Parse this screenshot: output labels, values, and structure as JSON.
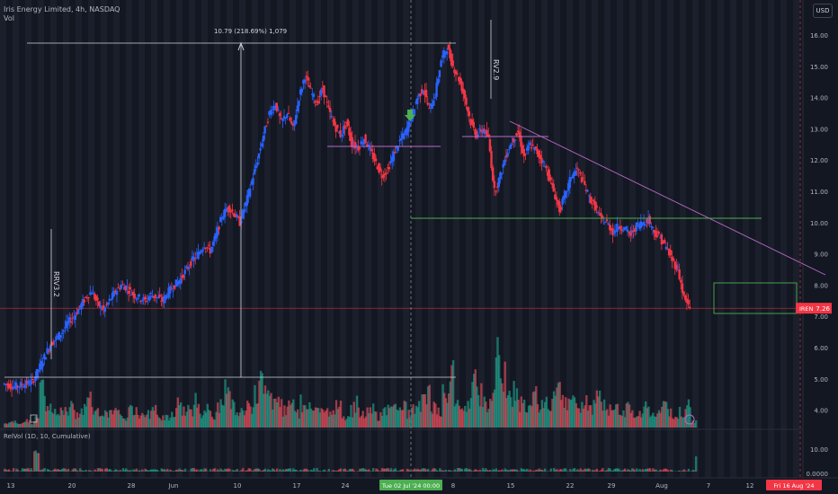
{
  "header": {
    "symbol_line": "Iris Energy Limited, 4h, NASDAQ",
    "vol_label": "Vol"
  },
  "currency_button": "USD",
  "relvol_label": "RelVol (1D, 10, Cumulative)",
  "chart_data": {
    "type": "candlestick",
    "price_axis": {
      "ticks": [
        "16.00",
        "15.00",
        "14.00",
        "13.00",
        "12.00",
        "11.00",
        "10.00",
        "9.00",
        "8.00",
        "7.00",
        "6.00",
        "5.00",
        "4.00"
      ],
      "range": [
        3.5,
        16.5
      ]
    },
    "relvol_axis": {
      "ticks": [
        "10.00",
        "0.0000"
      ]
    },
    "time_axis": {
      "labels": [
        "13",
        "20",
        "28",
        "Jun",
        "10",
        "17",
        "24",
        "Tue 02 Jul '24   00:00",
        "8",
        "15",
        "22",
        "29",
        "Aug",
        "7",
        "12",
        "Fri 16 Aug '24"
      ]
    },
    "last_price": {
      "ticker": "IREN",
      "value": "7.26",
      "color": "#f23645"
    },
    "annotations": {
      "measure_label": "10.79 (218.69%) 1,079",
      "rv_labels": [
        "RRV3.2",
        "RV2.9"
      ]
    },
    "price_path": [
      4.85,
      4.8,
      4.75,
      4.8,
      4.85,
      4.9,
      5.3,
      5.7,
      6.1,
      6.3,
      6.5,
      6.8,
      7.0,
      7.3,
      7.6,
      7.8,
      7.4,
      7.2,
      7.5,
      7.8,
      8.0,
      7.9,
      7.7,
      7.6,
      7.5,
      7.7,
      7.6,
      7.5,
      7.8,
      8.0,
      8.2,
      8.5,
      8.8,
      9.0,
      9.3,
      9.1,
      9.6,
      10.2,
      10.5,
      10.3,
      10.0,
      10.6,
      11.3,
      12.0,
      12.8,
      13.5,
      13.8,
      13.2,
      13.5,
      13.0,
      14.0,
      14.7,
      14.2,
      13.8,
      14.3,
      13.6,
      13.1,
      12.8,
      13.2,
      12.5,
      12.4,
      12.7,
      12.3,
      11.9,
      11.5,
      11.7,
      12.2,
      12.6,
      12.9,
      13.4,
      14.0,
      14.3,
      13.6,
      14.1,
      15.2,
      15.6,
      15.0,
      14.6,
      14.0,
      13.2,
      12.8,
      13.0,
      12.7,
      11.0,
      11.5,
      12.2,
      12.6,
      12.9,
      12.1,
      12.5,
      12.3,
      12.0,
      11.6,
      11.0,
      10.4,
      10.9,
      11.5,
      11.7,
      11.3,
      10.8,
      10.5,
      10.1,
      10.0,
      9.7,
      9.9,
      9.8,
      9.6,
      9.9,
      10.0,
      10.1,
      9.7,
      9.5,
      9.2,
      8.8,
      8.5,
      7.6,
      7.26
    ],
    "volume_path": [
      0.2,
      0.3,
      0.2,
      0.4,
      0.3,
      0.5,
      2.2,
      1.2,
      0.9,
      1.1,
      0.8,
      1.3,
      0.7,
      1.0,
      1.6,
      0.9,
      0.6,
      0.8,
      1.2,
      0.7,
      0.5,
      0.9,
      0.8,
      0.6,
      0.7,
      1.1,
      0.5,
      0.6,
      0.8,
      1.2,
      0.9,
      1.0,
      1.4,
      0.8,
      1.1,
      0.7,
      1.3,
      2.0,
      1.5,
      0.9,
      0.8,
      1.2,
      1.8,
      2.5,
      2.1,
      1.6,
      1.3,
      0.9,
      1.1,
      0.8,
      1.4,
      1.2,
      0.9,
      1.0,
      0.8,
      0.7,
      1.1,
      0.6,
      0.9,
      1.3,
      0.7,
      0.8,
      1.0,
      0.6,
      0.9,
      1.1,
      1.5,
      1.2,
      0.8,
      1.0,
      1.4,
      1.8,
      1.2,
      0.9,
      2.1,
      3.0,
      1.9,
      1.5,
      1.3,
      2.4,
      1.8,
      1.2,
      1.6,
      3.8,
      2.6,
      1.8,
      2.0,
      1.4,
      1.1,
      1.7,
      1.3,
      1.2,
      1.5,
      1.8,
      1.4,
      1.2,
      1.6,
      1.0,
      1.3,
      1.1,
      1.5,
      1.2,
      0.9,
      1.1,
      0.8,
      1.0,
      0.9,
      0.7,
      1.2,
      0.8,
      0.9,
      1.1,
      0.8,
      0.7,
      0.9,
      1.3,
      0.4
    ],
    "colors": {
      "up": "#2962ff",
      "down": "#f23645",
      "vol_up": "#22ab94",
      "vol_down": "#f7525f"
    }
  }
}
